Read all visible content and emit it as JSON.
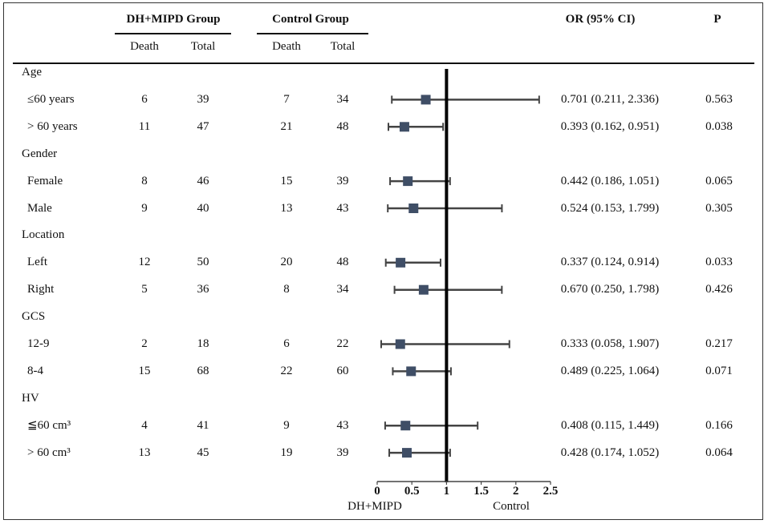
{
  "header": {
    "group1": "DH+MIPD Group",
    "group2": "Control Group",
    "or_col": "OR (95% CI)",
    "p_col": "P",
    "death": "Death",
    "total": "Total"
  },
  "chart_data": {
    "type": "forest",
    "xlim": [
      0,
      2.5
    ],
    "reference_line": 1,
    "ticks": [
      "0",
      "0.5",
      "1",
      "1.5",
      "2",
      "2.5"
    ],
    "tick_values": [
      0,
      0.5,
      1,
      1.5,
      2,
      2.5
    ],
    "left_label": "DH+MIPD",
    "right_label": "Control",
    "rows": [
      {
        "kind": "header",
        "label": "Age"
      },
      {
        "kind": "data",
        "label": "≤60 years",
        "g1_death": "6",
        "g1_total": "39",
        "g2_death": "7",
        "g2_total": "34",
        "or": 0.701,
        "lo": 0.211,
        "hi": 2.336,
        "or_text": "0.701 (0.211, 2.336)",
        "p": "0.563"
      },
      {
        "kind": "data",
        "label": "> 60 years",
        "g1_death": "11",
        "g1_total": "47",
        "g2_death": "21",
        "g2_total": "48",
        "or": 0.393,
        "lo": 0.162,
        "hi": 0.951,
        "or_text": "0.393 (0.162, 0.951)",
        "p": "0.038"
      },
      {
        "kind": "header",
        "label": "Gender"
      },
      {
        "kind": "data",
        "label": "Female",
        "g1_death": "8",
        "g1_total": "46",
        "g2_death": "15",
        "g2_total": "39",
        "or": 0.442,
        "lo": 0.186,
        "hi": 1.051,
        "or_text": "0.442 (0.186, 1.051)",
        "p": "0.065"
      },
      {
        "kind": "data",
        "label": "Male",
        "g1_death": "9",
        "g1_total": "40",
        "g2_death": "13",
        "g2_total": "43",
        "or": 0.524,
        "lo": 0.153,
        "hi": 1.799,
        "or_text": "0.524 (0.153, 1.799)",
        "p": "0.305"
      },
      {
        "kind": "header",
        "label": "Location"
      },
      {
        "kind": "data",
        "label": "Left",
        "g1_death": "12",
        "g1_total": "50",
        "g2_death": "20",
        "g2_total": "48",
        "or": 0.337,
        "lo": 0.124,
        "hi": 0.914,
        "or_text": "0.337 (0.124, 0.914)",
        "p": "0.033"
      },
      {
        "kind": "data",
        "label": "Right",
        "g1_death": "5",
        "g1_total": "36",
        "g2_death": "8",
        "g2_total": "34",
        "or": 0.67,
        "lo": 0.25,
        "hi": 1.798,
        "or_text": "0.670 (0.250, 1.798)",
        "p": "0.426"
      },
      {
        "kind": "header",
        "label": "GCS"
      },
      {
        "kind": "data",
        "label": "12-9",
        "g1_death": "2",
        "g1_total": "18",
        "g2_death": "6",
        "g2_total": "22",
        "or": 0.333,
        "lo": 0.058,
        "hi": 1.907,
        "or_text": "0.333 (0.058, 1.907)",
        "p": "0.217"
      },
      {
        "kind": "data",
        "label": "8-4",
        "g1_death": "15",
        "g1_total": "68",
        "g2_death": "22",
        "g2_total": "60",
        "or": 0.489,
        "lo": 0.225,
        "hi": 1.064,
        "or_text": "0.489 (0.225, 1.064)",
        "p": "0.071"
      },
      {
        "kind": "header",
        "label": "HV"
      },
      {
        "kind": "data",
        "label": "≦60 cm³",
        "g1_death": "4",
        "g1_total": "41",
        "g2_death": "9",
        "g2_total": "43",
        "or": 0.408,
        "lo": 0.115,
        "hi": 1.449,
        "or_text": "0.408 (0.115, 1.449)",
        "p": "0.166"
      },
      {
        "kind": "data",
        "label": "> 60 cm³",
        "g1_death": "13",
        "g1_total": "45",
        "g2_death": "19",
        "g2_total": "39",
        "or": 0.428,
        "lo": 0.174,
        "hi": 1.052,
        "or_text": "0.428 (0.174, 1.052)",
        "p": "0.064"
      }
    ]
  },
  "colors": {
    "marker": "#3f4e66",
    "ci": "#444444",
    "ref": "#000000"
  }
}
